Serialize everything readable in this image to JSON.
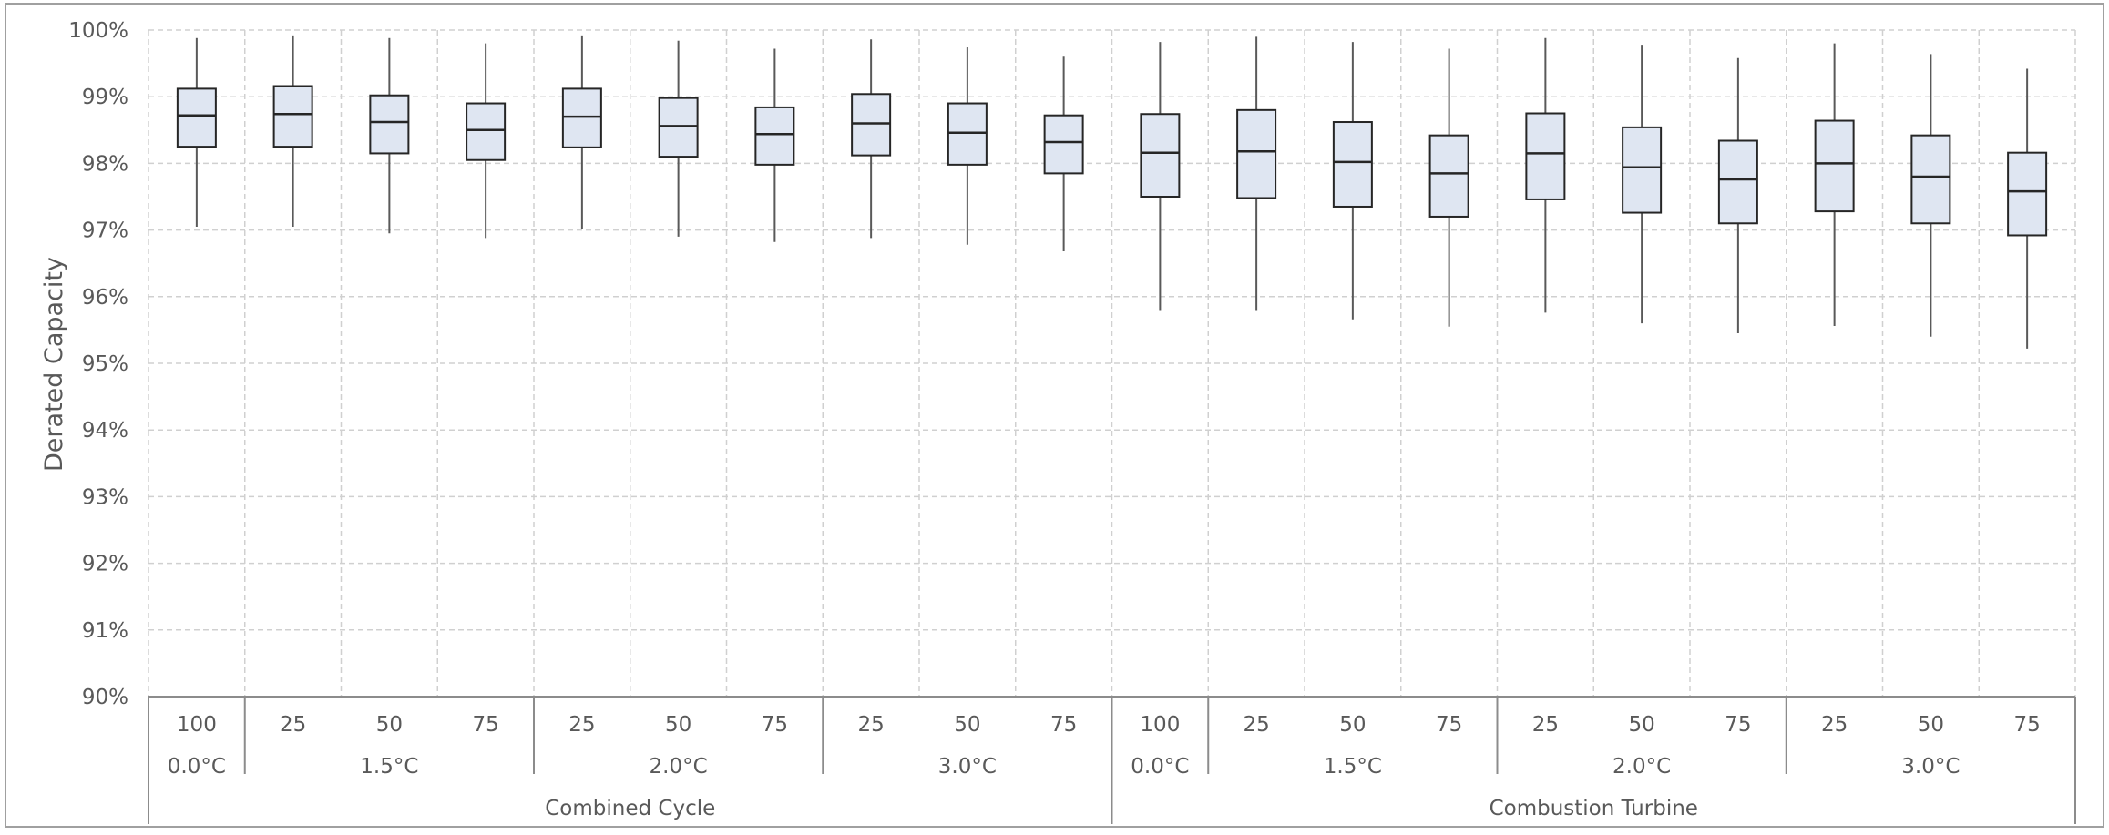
{
  "chart_data": {
    "type": "boxplot",
    "title": "",
    "ylabel": "Derated Capacity",
    "ylim": [
      90,
      100
    ],
    "yticks": [
      "90%",
      "91%",
      "92%",
      "93%",
      "94%",
      "95%",
      "96%",
      "97%",
      "98%",
      "99%",
      "100%"
    ],
    "grid": true,
    "groups": [
      "Combined Cycle",
      "Combustion Turbine"
    ],
    "scenarios": [
      {
        "label": "0.0°C",
        "group": 0
      },
      {
        "label": "1.5°C",
        "group": 0
      },
      {
        "label": "2.0°C",
        "group": 0
      },
      {
        "label": "3.0°C",
        "group": 0
      },
      {
        "label": "0.0°C",
        "group": 1
      },
      {
        "label": "1.5°C",
        "group": 1
      },
      {
        "label": "2.0°C",
        "group": 1
      },
      {
        "label": "3.0°C",
        "group": 1
      }
    ],
    "boxes": [
      {
        "label": "100",
        "scenario": 0,
        "min": 97.05,
        "q1": 98.25,
        "median": 98.72,
        "q3": 99.12,
        "max": 99.88
      },
      {
        "label": "25",
        "scenario": 1,
        "min": 97.05,
        "q1": 98.25,
        "median": 98.74,
        "q3": 99.16,
        "max": 99.92
      },
      {
        "label": "50",
        "scenario": 1,
        "min": 96.95,
        "q1": 98.15,
        "median": 98.62,
        "q3": 99.02,
        "max": 99.88
      },
      {
        "label": "75",
        "scenario": 1,
        "min": 96.88,
        "q1": 98.05,
        "median": 98.5,
        "q3": 98.9,
        "max": 99.8
      },
      {
        "label": "25",
        "scenario": 2,
        "min": 97.02,
        "q1": 98.24,
        "median": 98.7,
        "q3": 99.12,
        "max": 99.92
      },
      {
        "label": "50",
        "scenario": 2,
        "min": 96.9,
        "q1": 98.1,
        "median": 98.56,
        "q3": 98.98,
        "max": 99.84
      },
      {
        "label": "75",
        "scenario": 2,
        "min": 96.82,
        "q1": 97.98,
        "median": 98.44,
        "q3": 98.84,
        "max": 99.72
      },
      {
        "label": "25",
        "scenario": 3,
        "min": 96.88,
        "q1": 98.12,
        "median": 98.6,
        "q3": 99.04,
        "max": 99.86
      },
      {
        "label": "50",
        "scenario": 3,
        "min": 96.78,
        "q1": 97.98,
        "median": 98.46,
        "q3": 98.9,
        "max": 99.74
      },
      {
        "label": "75",
        "scenario": 3,
        "min": 96.68,
        "q1": 97.85,
        "median": 98.32,
        "q3": 98.72,
        "max": 99.6
      },
      {
        "label": "100",
        "scenario": 4,
        "min": 95.8,
        "q1": 97.5,
        "median": 98.16,
        "q3": 98.74,
        "max": 99.82
      },
      {
        "label": "25",
        "scenario": 5,
        "min": 95.8,
        "q1": 97.48,
        "median": 98.18,
        "q3": 98.8,
        "max": 99.9
      },
      {
        "label": "50",
        "scenario": 5,
        "min": 95.66,
        "q1": 97.35,
        "median": 98.02,
        "q3": 98.62,
        "max": 99.82
      },
      {
        "label": "75",
        "scenario": 5,
        "min": 95.55,
        "q1": 97.2,
        "median": 97.85,
        "q3": 98.42,
        "max": 99.72
      },
      {
        "label": "25",
        "scenario": 6,
        "min": 95.76,
        "q1": 97.46,
        "median": 98.15,
        "q3": 98.75,
        "max": 99.88
      },
      {
        "label": "50",
        "scenario": 6,
        "min": 95.6,
        "q1": 97.26,
        "median": 97.94,
        "q3": 98.54,
        "max": 99.78
      },
      {
        "label": "75",
        "scenario": 6,
        "min": 95.45,
        "q1": 97.1,
        "median": 97.76,
        "q3": 98.34,
        "max": 99.58
      },
      {
        "label": "25",
        "scenario": 7,
        "min": 95.56,
        "q1": 97.28,
        "median": 98.0,
        "q3": 98.64,
        "max": 99.8
      },
      {
        "label": "50",
        "scenario": 7,
        "min": 95.4,
        "q1": 97.1,
        "median": 97.8,
        "q3": 98.42,
        "max": 99.64
      },
      {
        "label": "75",
        "scenario": 7,
        "min": 95.22,
        "q1": 96.92,
        "median": 97.58,
        "q3": 98.16,
        "max": 99.42
      }
    ]
  },
  "colors": {
    "box_fill": "#dfe6f2",
    "box_stroke": "#262626",
    "whisker": "#595959",
    "grid": "#d0d0d0",
    "axis": "#8c8c8c",
    "text": "#595959",
    "frame": "#a0a0a0"
  }
}
